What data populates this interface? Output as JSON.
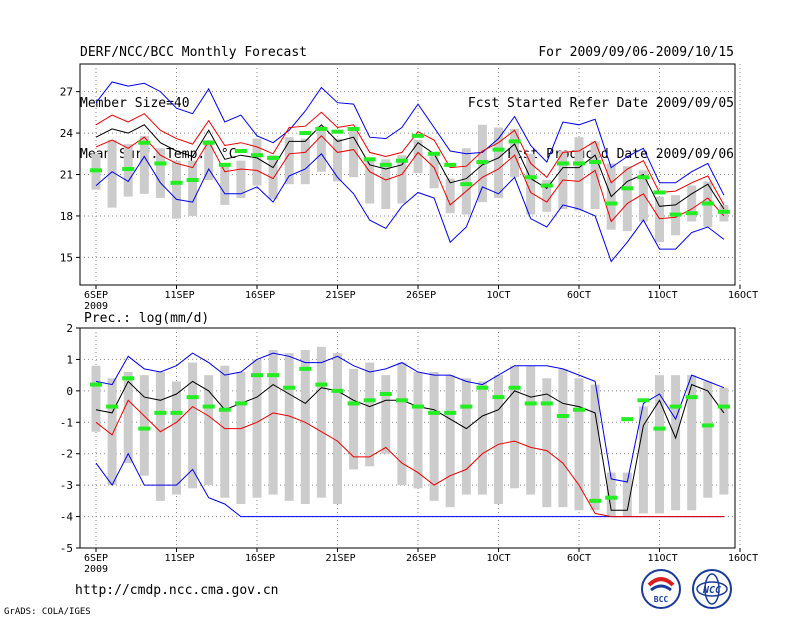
{
  "header": {
    "left": [
      "DERF/NCC/BCC Monthly Forecast",
      "Member Size=40",
      "Mean Surf. Temp.: °C"
    ],
    "right": [
      "For 2009/09/06-2009/10/15",
      "Fcst Started Refer Date 2009/09/05",
      "Fcst Produced Date 2009/09/06"
    ]
  },
  "footer": {
    "url": "http://cmdp.ncc.cma.gov.cn",
    "credit": "GrADS: COLA/IGES",
    "logo_left": "BCC",
    "logo_right": "NCC"
  },
  "colors": {
    "envelope": "#0000ee",
    "spread": "#ee0000",
    "mean": "#000000",
    "obs": "#22ee22",
    "box": "#cccccc"
  },
  "chart_data": [
    {
      "type": "line",
      "title": "Mean Surf. Temp.: °C",
      "x": [
        1,
        2,
        3,
        4,
        5,
        6,
        7,
        8,
        9,
        10,
        11,
        12,
        13,
        14,
        15,
        16,
        17,
        18,
        19,
        20,
        21,
        22,
        23,
        24,
        25,
        26,
        27,
        28,
        29,
        30,
        31,
        32,
        33,
        34,
        35,
        36,
        37,
        38,
        39,
        40
      ],
      "xticks": [
        1,
        6,
        11,
        16,
        21,
        26,
        31,
        36,
        41
      ],
      "xticklabels": [
        "6SEP",
        "11SEP",
        "16SEP",
        "21SEP",
        "26SEP",
        "1OCT",
        "6OCT",
        "11OCT",
        "16OCT"
      ],
      "xsub": "2009",
      "ylim": [
        13,
        29
      ],
      "yticks": [
        15,
        18,
        21,
        24,
        27
      ],
      "series": [
        {
          "name": "max",
          "values": [
            26.2,
            27.7,
            27.4,
            27.6,
            27.0,
            25.8,
            25.4,
            27.2,
            24.8,
            25.3,
            23.8,
            23.3,
            24.2,
            25.6,
            27.3,
            26.2,
            26.1,
            23.7,
            23.6,
            24.4,
            26.1,
            24.4,
            22.7,
            22.5,
            22.6,
            23.6,
            25.2,
            23.1,
            21.9,
            24.8,
            24.6,
            25.0,
            21.5,
            22.3,
            22.9,
            20.4,
            20.4,
            21.2,
            21.8,
            19.5
          ]
        },
        {
          "name": "upper",
          "values": [
            24.6,
            25.3,
            24.8,
            25.4,
            24.2,
            23.6,
            23.2,
            24.9,
            23.1,
            23.3,
            23.0,
            22.5,
            24.4,
            24.5,
            25.5,
            24.4,
            24.6,
            22.6,
            22.3,
            22.6,
            24.1,
            23.5,
            21.5,
            21.6,
            22.7,
            23.3,
            24.2,
            21.8,
            20.8,
            22.6,
            22.7,
            23.4,
            20.4,
            21.4,
            22.0,
            19.7,
            19.8,
            20.4,
            20.9,
            18.8
          ]
        },
        {
          "name": "mean",
          "values": [
            23.7,
            24.3,
            24.0,
            24.6,
            23.3,
            22.7,
            22.3,
            24.2,
            22.1,
            22.4,
            22.2,
            21.5,
            23.4,
            23.4,
            24.6,
            23.4,
            23.7,
            21.7,
            21.4,
            21.7,
            23.3,
            22.5,
            20.4,
            20.7,
            21.7,
            22.2,
            23.2,
            20.7,
            20.0,
            21.5,
            21.5,
            22.4,
            19.4,
            20.5,
            21.0,
            18.7,
            18.8,
            19.6,
            20.3,
            18.5
          ]
        },
        {
          "name": "lower",
          "values": [
            23.0,
            23.5,
            22.9,
            23.7,
            22.4,
            21.8,
            21.5,
            23.4,
            21.2,
            21.4,
            21.3,
            20.7,
            22.5,
            22.6,
            23.8,
            22.6,
            22.8,
            21.2,
            20.6,
            21.0,
            22.6,
            21.5,
            18.8,
            19.8,
            20.8,
            21.4,
            22.4,
            19.7,
            19.0,
            20.6,
            20.5,
            21.3,
            17.6,
            18.9,
            19.6,
            17.8,
            17.9,
            18.5,
            19.3,
            18.0
          ]
        },
        {
          "name": "min",
          "values": [
            20.2,
            21.2,
            20.5,
            22.3,
            20.4,
            19.2,
            19.0,
            21.4,
            19.6,
            19.6,
            20.1,
            19.0,
            20.9,
            21.4,
            22.5,
            20.8,
            19.6,
            17.7,
            17.1,
            18.7,
            19.7,
            19.3,
            16.1,
            17.2,
            20.1,
            19.6,
            20.8,
            17.8,
            17.2,
            18.8,
            18.5,
            18.0,
            14.7,
            16.1,
            17.7,
            15.6,
            15.6,
            16.8,
            17.2,
            16.3
          ]
        },
        {
          "name": "observed",
          "values": [
            21.3,
            null,
            21.4,
            23.3,
            21.8,
            20.4,
            20.6,
            23.3,
            21.7,
            22.7,
            22.4,
            22.2,
            null,
            24.0,
            24.3,
            24.1,
            24.3,
            22.1,
            21.7,
            22.0,
            23.8,
            22.5,
            21.7,
            20.3,
            21.9,
            22.8,
            23.4,
            20.8,
            20.2,
            21.8,
            21.8,
            21.9,
            18.9,
            20.0,
            20.8,
            19.7,
            18.1,
            18.2,
            18.9,
            18.3
          ]
        }
      ],
      "box_top": [
        22.5,
        23.5,
        23.2,
        23.8,
        22.9,
        22.0,
        22.0,
        23.5,
        21.8,
        22.0,
        23.6,
        22.4,
        23.7,
        23.6,
        24.5,
        23.6,
        24.2,
        22.1,
        22.1,
        22.4,
        23.5,
        22.6,
        20.7,
        22.9,
        24.6,
        24.4,
        24.3,
        22.5,
        20.6,
        22.7,
        23.7,
        23.4,
        21.8,
        21.6,
        21.3,
        19.4,
        19.5,
        20.2,
        20.5,
        18.8
      ],
      "box_bottom": [
        19.9,
        18.6,
        19.4,
        19.6,
        19.3,
        17.8,
        18.0,
        20.6,
        18.8,
        19.3,
        20.2,
        19.2,
        20.3,
        20.3,
        21.2,
        20.5,
        20.8,
        18.9,
        18.5,
        18.9,
        21.1,
        20.0,
        18.2,
        18.1,
        19.0,
        19.3,
        20.8,
        18.1,
        18.3,
        18.5,
        18.4,
        18.5,
        17.0,
        16.9,
        17.6,
        16.1,
        16.6,
        17.6,
        17.2,
        17.6
      ]
    },
    {
      "type": "line",
      "title": "Prec.: log(mm/d)",
      "x": [
        1,
        2,
        3,
        4,
        5,
        6,
        7,
        8,
        9,
        10,
        11,
        12,
        13,
        14,
        15,
        16,
        17,
        18,
        19,
        20,
        21,
        22,
        23,
        24,
        25,
        26,
        27,
        28,
        29,
        30,
        31,
        32,
        33,
        34,
        35,
        36,
        37,
        38,
        39,
        40
      ],
      "xticks": [
        1,
        6,
        11,
        16,
        21,
        26,
        31,
        36,
        41
      ],
      "xticklabels": [
        "6SEP",
        "11SEP",
        "16SEP",
        "21SEP",
        "26SEP",
        "1OCT",
        "6OCT",
        "11OCT",
        "16OCT"
      ],
      "xsub": "2009",
      "ylim": [
        -5,
        2
      ],
      "yticks": [
        -5,
        -4,
        -3,
        -2,
        -1,
        0,
        1,
        2
      ],
      "series": [
        {
          "name": "max",
          "values": [
            0.3,
            0.2,
            1.1,
            0.7,
            0.6,
            0.8,
            1.2,
            0.9,
            0.5,
            0.6,
            1.0,
            1.2,
            1.1,
            0.9,
            0.9,
            1.1,
            0.8,
            0.6,
            0.7,
            0.9,
            0.6,
            0.5,
            0.5,
            0.3,
            0.2,
            0.5,
            0.8,
            0.8,
            0.8,
            0.7,
            0.5,
            0.3,
            -2.8,
            -2.9,
            -0.4,
            -0.1,
            -0.9,
            0.5,
            0.3,
            0.1
          ]
        },
        {
          "name": "mean",
          "values": [
            -0.6,
            -0.7,
            0.3,
            -0.2,
            -0.3,
            -0.1,
            0.3,
            0.0,
            -0.6,
            -0.4,
            -0.2,
            0.2,
            -0.1,
            -0.4,
            0.1,
            0.0,
            -0.3,
            -0.5,
            -0.3,
            -0.3,
            -0.5,
            -0.6,
            -0.9,
            -1.2,
            -0.8,
            -0.6,
            0.0,
            -0.2,
            -0.1,
            -0.4,
            -0.5,
            -0.7,
            -3.8,
            -3.8,
            -1.1,
            -0.3,
            -1.5,
            0.2,
            0.0,
            -0.7
          ]
        },
        {
          "name": "min",
          "values": [
            -2.3,
            -3.0,
            -2.0,
            -3.0,
            -3.0,
            -3.0,
            -2.5,
            -3.4,
            -3.6,
            -4.0,
            -4.0,
            -4.0,
            -4.0,
            -4.0,
            -4.0,
            -4.0,
            -4.0,
            -4.0,
            -4.0,
            -4.0,
            -4.0,
            -4.0,
            -4.0,
            -4.0,
            -4.0,
            -4.0,
            -4.0,
            -4.0,
            -4.0,
            -4.0,
            -4.0,
            -4.0,
            -4.0,
            -4.0,
            -4.0,
            -4.0,
            -4.0,
            -4.0,
            -4.0,
            -4.0
          ]
        },
        {
          "name": "lower",
          "values": [
            -1.0,
            -1.4,
            -0.3,
            -0.8,
            -1.3,
            -1.0,
            -0.5,
            -0.8,
            -1.2,
            -1.2,
            -1.0,
            -0.7,
            -0.8,
            -1.0,
            -1.3,
            -1.6,
            -2.1,
            -2.1,
            -1.8,
            -2.3,
            -2.6,
            -3.0,
            -2.7,
            -2.5,
            -2.0,
            -1.7,
            -1.6,
            -1.8,
            -1.9,
            -2.3,
            -3.0,
            -3.9,
            -4.0,
            -4.0,
            -4.0,
            -4.0,
            -4.0,
            -4.0,
            -4.0,
            -4.0
          ]
        },
        {
          "name": "observed",
          "values": [
            0.2,
            -0.5,
            0.4,
            -1.2,
            -0.7,
            -0.7,
            -0.2,
            -0.5,
            -0.6,
            -0.4,
            0.5,
            0.5,
            0.1,
            0.7,
            0.2,
            0.0,
            -0.4,
            -0.3,
            -0.1,
            -0.3,
            -0.5,
            -0.7,
            -0.7,
            -0.5,
            0.1,
            -0.2,
            0.1,
            -0.4,
            -0.4,
            -0.8,
            -0.6,
            -3.5,
            -3.4,
            -0.9,
            -0.3,
            -1.2,
            -0.5,
            -0.2,
            -1.1,
            -0.5
          ]
        }
      ],
      "box_top": [
        0.8,
        0.4,
        0.6,
        0.5,
        0.6,
        0.3,
        0.9,
        0.5,
        0.8,
        0.6,
        1.0,
        1.3,
        1.2,
        1.3,
        1.4,
        1.2,
        0.7,
        0.9,
        0.5,
        0.9,
        0.6,
        0.6,
        0.5,
        0.4,
        0.3,
        0.5,
        0.8,
        0.8,
        0.4,
        0.7,
        0.4,
        0.2,
        -2.6,
        -2.6,
        -0.5,
        0.5,
        0.5,
        0.5,
        0.3,
        0.1
      ],
      "box_bottom": [
        -1.3,
        -3.0,
        -2.3,
        -2.7,
        -3.5,
        -3.3,
        -3.1,
        -3.0,
        -3.4,
        -3.6,
        -3.4,
        -3.3,
        -3.5,
        -3.6,
        -3.4,
        -3.6,
        -2.5,
        -2.4,
        -2.0,
        -3.0,
        -3.1,
        -3.5,
        -3.7,
        -3.3,
        -3.3,
        -3.6,
        -3.1,
        -3.3,
        -3.7,
        -3.7,
        -3.8,
        -3.8,
        -4.0,
        -4.0,
        -3.9,
        -3.9,
        -3.8,
        -3.8,
        -3.4,
        -3.3
      ]
    }
  ]
}
